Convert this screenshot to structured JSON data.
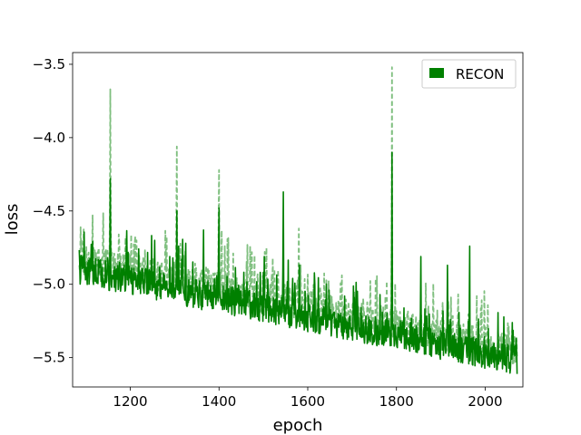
{
  "chart_data": {
    "type": "line",
    "xlabel": "epoch",
    "ylabel": "loss",
    "xlim": [
      1070,
      2085
    ],
    "ylim": [
      -5.7,
      -3.42
    ],
    "xticks": [
      1200,
      1400,
      1600,
      1800,
      2000
    ],
    "yticks": [
      -3.5,
      -4.0,
      -4.5,
      -5.0,
      -5.5
    ],
    "xtick_labels": [
      "1200",
      "1400",
      "1600",
      "1800",
      "2000"
    ],
    "ytick_labels": [
      "−3.5",
      "−4.0",
      "−4.5",
      "−5.0",
      "−5.5"
    ],
    "grid": false,
    "legend": {
      "position": "top-right",
      "entries": [
        "RECON"
      ]
    },
    "colors": {
      "solid": "#008000",
      "dashed": "#7fbf7f"
    },
    "series": [
      {
        "name": "RECON",
        "style": "solid",
        "x_start": 1085,
        "x_end": 2072,
        "start_value": -4.9,
        "end_value": -5.52,
        "spikes": [
          {
            "x": 1155,
            "y": -4.28
          },
          {
            "x": 1255,
            "y": -4.7
          },
          {
            "x": 1305,
            "y": -4.5
          },
          {
            "x": 1325,
            "y": -4.72
          },
          {
            "x": 1365,
            "y": -4.63
          },
          {
            "x": 1400,
            "y": -4.48
          },
          {
            "x": 1545,
            "y": -4.37
          },
          {
            "x": 1790,
            "y": -4.1
          },
          {
            "x": 1855,
            "y": -4.81
          },
          {
            "x": 1915,
            "y": -4.87
          },
          {
            "x": 1965,
            "y": -4.74
          }
        ]
      },
      {
        "name": "",
        "style": "dashed",
        "x_start": 1085,
        "x_end": 2072,
        "start_value": -4.82,
        "end_value": -5.45,
        "spikes": [
          {
            "x": 1115,
            "y": -4.53
          },
          {
            "x": 1155,
            "y": -3.67
          },
          {
            "x": 1305,
            "y": -4.06
          },
          {
            "x": 1400,
            "y": -4.22
          },
          {
            "x": 1580,
            "y": -4.62
          },
          {
            "x": 1790,
            "y": -3.52
          }
        ]
      }
    ]
  }
}
